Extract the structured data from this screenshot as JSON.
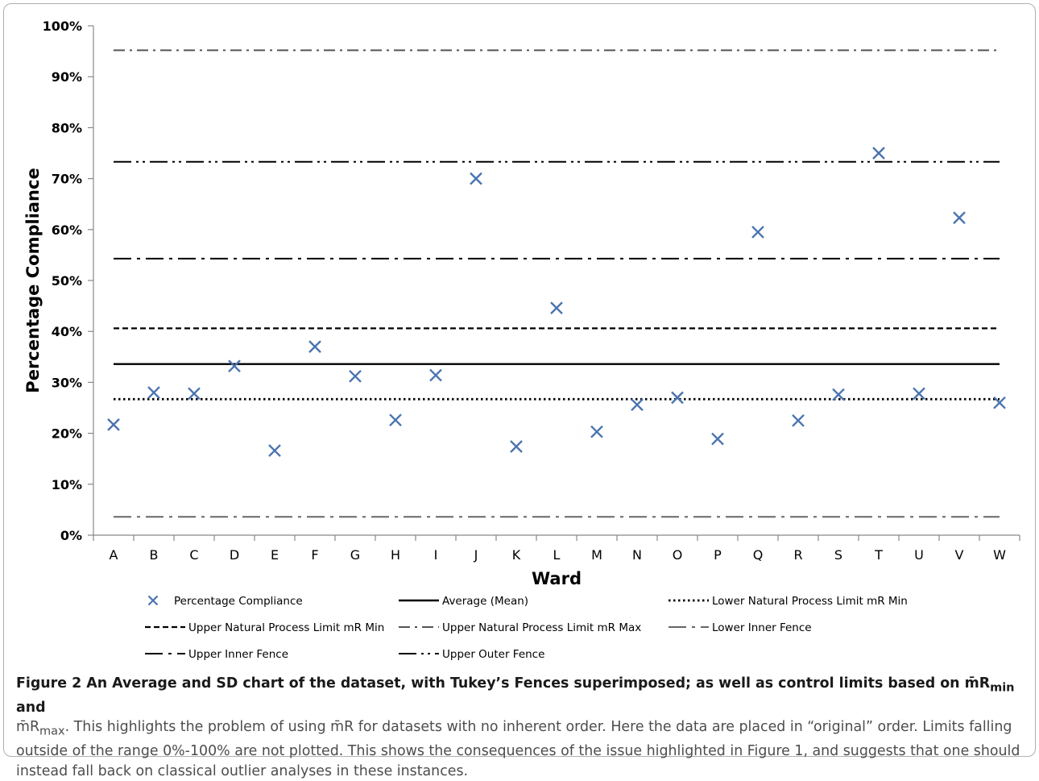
{
  "chart_data": {
    "type": "scatter",
    "ylabel": "Percentage Compliance",
    "xlabel": "Ward",
    "ylim": [
      0,
      100
    ],
    "y_ticks": [
      "0%",
      "10%",
      "20%",
      "30%",
      "40%",
      "50%",
      "60%",
      "70%",
      "80%",
      "90%",
      "100%"
    ],
    "categories": [
      "A",
      "B",
      "C",
      "D",
      "E",
      "F",
      "G",
      "H",
      "I",
      "J",
      "K",
      "L",
      "M",
      "N",
      "O",
      "P",
      "Q",
      "R",
      "S",
      "T",
      "U",
      "V",
      "W"
    ],
    "series": [
      {
        "name": "Percentage Compliance",
        "marker": "x",
        "color": "#4a74b0",
        "values": [
          21.7,
          28.0,
          27.8,
          33.2,
          16.6,
          37.0,
          31.2,
          22.6,
          31.4,
          70.0,
          17.4,
          44.6,
          20.3,
          25.6,
          27.0,
          18.9,
          59.5,
          22.5,
          27.6,
          75.0,
          27.8,
          62.3,
          26.0
        ]
      }
    ],
    "reference_lines": [
      {
        "name": "Average (Mean)",
        "value": 33.6,
        "style": "solid"
      },
      {
        "name": "Lower Natural Process Limit mR Min",
        "value": 26.7,
        "style": "dotted"
      },
      {
        "name": "Upper Natural Process Limit mR Min",
        "value": 40.6,
        "style": "dashed"
      },
      {
        "name": "Upper Natural Process Limit mR Max",
        "value": 95.2,
        "style": "dash-dot-gray"
      },
      {
        "name": "Lower Inner Fence",
        "value": 3.6,
        "style": "long-dash-dot-gray"
      },
      {
        "name": "Upper Inner Fence",
        "value": 54.3,
        "style": "long-dash-dot"
      },
      {
        "name": "Upper Outer Fence",
        "value": 73.3,
        "style": "long-dash-dot-dot"
      }
    ],
    "legend": {
      "placement": "bottom",
      "entries": [
        "Percentage Compliance",
        "Average (Mean)",
        "Lower Natural Process Limit mR Min",
        "Upper Natural Process Limit mR Min",
        "Upper Natural Process Limit mR Max",
        "Lower Inner Fence",
        "Upper Inner Fence",
        "Upper Outer Fence"
      ]
    },
    "grid": false
  },
  "caption": {
    "lead": "Figure 2 An Average and SD chart of the dataset, with Tukey’s Fences superimposed; as well as control limits based on m̄R",
    "lead_sub": "min",
    "lead_and": " and",
    "line2_pre": "m̄R",
    "line2_sub": "max",
    "body": ". This highlights the problem of using m̄R for datasets with no inherent order. Here the data are placed in “original” order. Limits falling outside of the range 0%-100% are not plotted. This shows the consequences of the issue highlighted in Figure 1, and suggests that one should instead fall back on classical outlier analyses in these instances."
  }
}
